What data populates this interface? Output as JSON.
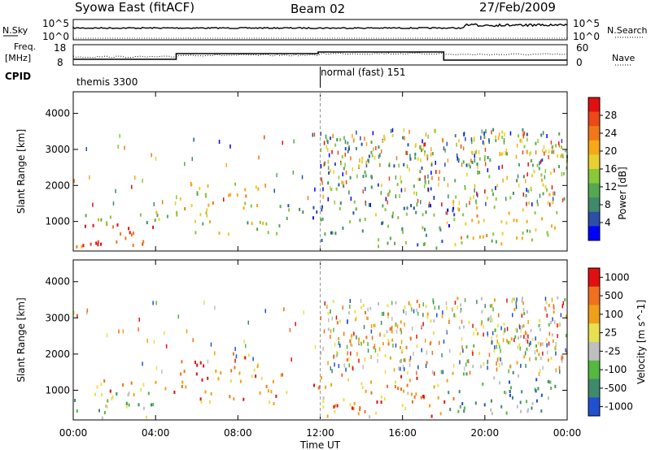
{
  "header": {
    "title": "Syowa East (fitACF)",
    "beam": "Beam 02",
    "date": "27/Feb/2009"
  },
  "noise_panel": {
    "left_label": "N.Sky",
    "right_label": "N.Search",
    "ticks_left": [
      "10^5",
      "10^0"
    ],
    "ticks_right": [
      "10^5",
      "10^0"
    ]
  },
  "freq_panel": {
    "left_label_line1": "Freq.",
    "left_label_line2": "[MHz]",
    "ticks_left": [
      "18",
      "8"
    ],
    "right_label": "Nave",
    "ticks_right": [
      "60",
      "0"
    ]
  },
  "cpid": {
    "label": "CPID",
    "segments": [
      {
        "name": "themis 3300",
        "start_hour": 0
      },
      {
        "name": "normal (fast) 151",
        "start_hour": 12
      }
    ]
  },
  "colors": {
    "power_scale": [
      "#0000ff",
      "#2b4fa8",
      "#3f8a6a",
      "#55a850",
      "#88c83a",
      "#e8d030",
      "#f8a818",
      "#f07818",
      "#ec4818",
      "#e01010"
    ],
    "velocity_scale": [
      "#2050d0",
      "#3f8a6a",
      "#55b840",
      "#bfbfbf",
      "#e8e050",
      "#f0a018",
      "#f07020",
      "#e01010"
    ]
  },
  "chart_data": [
    {
      "type": "heatmap",
      "name": "power",
      "ylabel": "Slant Range [km]",
      "xlabel": "Time UT",
      "x_range_hours": [
        0,
        24
      ],
      "ylim": [
        180,
        4600
      ],
      "yticks": [
        1000,
        2000,
        3000,
        4000
      ],
      "xticks": [
        "00:00",
        "04:00",
        "08:00",
        "12:00",
        "16:00",
        "20:00",
        "00:00"
      ],
      "colorbar": {
        "label": "Power [dB]",
        "range": [
          0,
          32
        ],
        "ticks": [
          "4",
          "8",
          "12",
          "16",
          "20",
          "24",
          "28"
        ]
      },
      "regions": [
        {
          "t0": 0.0,
          "t1": 4.0,
          "r0": 260,
          "r1": 1000,
          "level": 0.9
        },
        {
          "t0": 0.5,
          "t1": 5.5,
          "r0": 900,
          "r1": 1300,
          "level": 0.5
        },
        {
          "t0": 5.0,
          "t1": 9.0,
          "r0": 1200,
          "r1": 2100,
          "level": 0.55
        },
        {
          "t0": 5.5,
          "t1": 10.5,
          "r0": 650,
          "r1": 1050,
          "level": 0.45
        },
        {
          "t0": 9.0,
          "t1": 12.0,
          "r0": 1100,
          "r1": 1500,
          "level": 0.3
        },
        {
          "t0": 12.0,
          "t1": 18.5,
          "r0": 300,
          "r1": 1600,
          "level": 0.3
        },
        {
          "t0": 12.3,
          "t1": 17.5,
          "r0": 1800,
          "r1": 3500,
          "level": 0.35
        },
        {
          "t0": 18.0,
          "t1": 23.5,
          "r0": 400,
          "r1": 1600,
          "level": 0.6
        },
        {
          "t0": 18.5,
          "t1": 24.0,
          "r0": 1600,
          "r1": 3600,
          "level": 0.4
        }
      ]
    },
    {
      "type": "heatmap",
      "name": "velocity",
      "ylabel": "Slant Range [km]",
      "xlabel": "Time UT",
      "x_range_hours": [
        0,
        24
      ],
      "ylim": [
        180,
        4600
      ],
      "yticks": [
        1000,
        2000,
        3000,
        4000
      ],
      "xticks": [
        "00:00",
        "04:00",
        "08:00",
        "12:00",
        "16:00",
        "20:00",
        "00:00"
      ],
      "colorbar": {
        "label": "Velocity [m s^-1]",
        "ticks": [
          "1000",
          "500",
          "100",
          "25",
          "-25",
          "-100",
          "-500",
          "-1000"
        ]
      },
      "regions": [
        {
          "t0": 0.0,
          "t1": 4.0,
          "r0": 260,
          "r1": 1000,
          "level": 0.35
        },
        {
          "t0": 0.5,
          "t1": 5.5,
          "r0": 900,
          "r1": 1300,
          "level": 0.7
        },
        {
          "t0": 5.0,
          "t1": 9.0,
          "r0": 1200,
          "r1": 2100,
          "level": 0.8
        },
        {
          "t0": 5.5,
          "t1": 10.5,
          "r0": 650,
          "r1": 1050,
          "level": 0.72
        },
        {
          "t0": 9.0,
          "t1": 12.0,
          "r0": 1100,
          "r1": 1500,
          "level": 0.75
        },
        {
          "t0": 12.0,
          "t1": 18.5,
          "r0": 300,
          "r1": 1600,
          "level": 0.7
        },
        {
          "t0": 12.3,
          "t1": 17.5,
          "r0": 1800,
          "r1": 3500,
          "level": 0.65
        },
        {
          "t0": 18.0,
          "t1": 23.5,
          "r0": 400,
          "r1": 1600,
          "level": 0.25
        },
        {
          "t0": 18.5,
          "t1": 24.0,
          "r0": 1600,
          "r1": 3600,
          "level": 0.5
        }
      ]
    }
  ]
}
